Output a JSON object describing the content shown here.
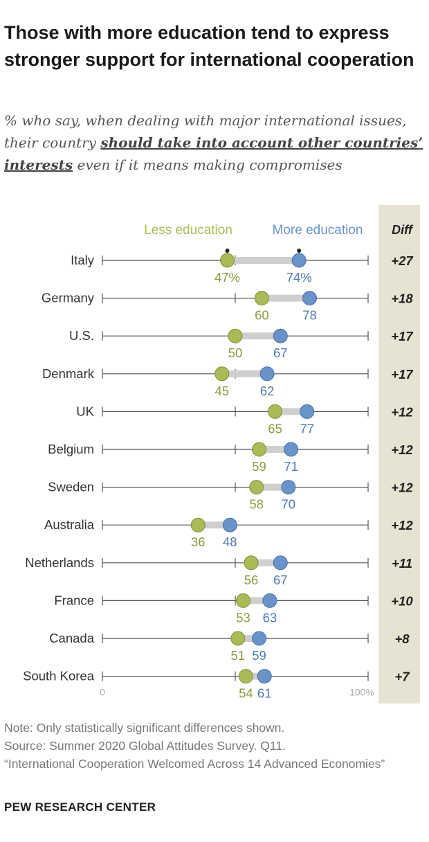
{
  "header": {
    "title": "Those with more education tend to express stronger support for international cooperation",
    "subtitle_before": "% who say, when dealing with major international issues, their country ",
    "subtitle_emph": "should take into account other countries’ interests",
    "subtitle_after": " even if it means making compromises"
  },
  "chart_data": {
    "type": "dot-plot",
    "legend": {
      "less": "Less education",
      "more": "More education"
    },
    "diff_header": "Diff",
    "axis": {
      "min_label": "0",
      "max_label": "100%",
      "xlim": [
        0,
        100
      ]
    },
    "colors": {
      "less": "#a9bb56",
      "more": "#6a93cc",
      "diff_bg": "#e6e3d3"
    },
    "rows": [
      {
        "country": "Italy",
        "less": 47,
        "more": 74,
        "less_label": "47%",
        "more_label": "74%",
        "diff": "+27"
      },
      {
        "country": "Germany",
        "less": 60,
        "more": 78,
        "less_label": "60",
        "more_label": "78",
        "diff": "+18"
      },
      {
        "country": "U.S.",
        "less": 50,
        "more": 67,
        "less_label": "50",
        "more_label": "67",
        "diff": "+17"
      },
      {
        "country": "Denmark",
        "less": 45,
        "more": 62,
        "less_label": "45",
        "more_label": "62",
        "diff": "+17"
      },
      {
        "country": "UK",
        "less": 65,
        "more": 77,
        "less_label": "65",
        "more_label": "77",
        "diff": "+12"
      },
      {
        "country": "Belgium",
        "less": 59,
        "more": 71,
        "less_label": "59",
        "more_label": "71",
        "diff": "+12"
      },
      {
        "country": "Sweden",
        "less": 58,
        "more": 70,
        "less_label": "58",
        "more_label": "70",
        "diff": "+12"
      },
      {
        "country": "Australia",
        "less": 36,
        "more": 48,
        "less_label": "36",
        "more_label": "48",
        "diff": "+12"
      },
      {
        "country": "Netherlands",
        "less": 56,
        "more": 67,
        "less_label": "56",
        "more_label": "67",
        "diff": "+11"
      },
      {
        "country": "France",
        "less": 53,
        "more": 63,
        "less_label": "53",
        "more_label": "63",
        "diff": "+10"
      },
      {
        "country": "Canada",
        "less": 51,
        "more": 59,
        "less_label": "51",
        "more_label": "59",
        "diff": "+8"
      },
      {
        "country": "South Korea",
        "less": 54,
        "more": 61,
        "less_label": "54",
        "more_label": "61",
        "diff": "+7"
      }
    ]
  },
  "footer": {
    "note": "Note: Only statistically significant differences shown.",
    "source": "Source: Summer 2020 Global Attitudes Survey. Q11.",
    "report": "“International Cooperation Welcomed Across 14 Advanced Economies”",
    "brand": "PEW RESEARCH CENTER"
  }
}
